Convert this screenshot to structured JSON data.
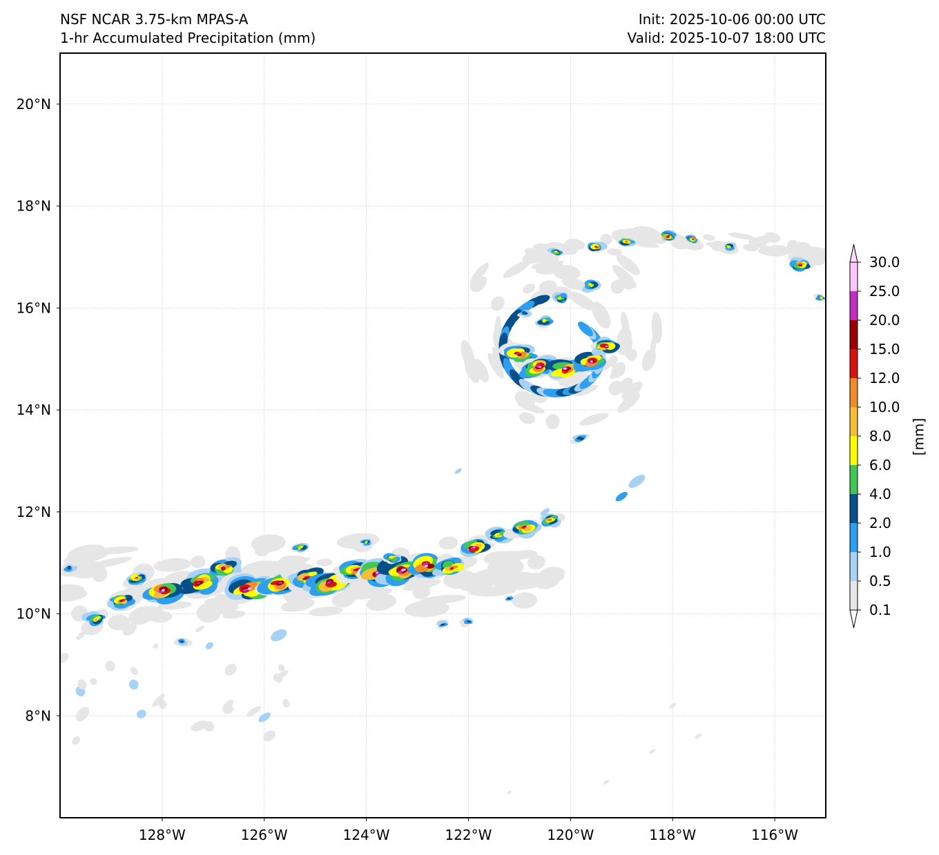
{
  "title": {
    "left_line1": "NSF NCAR 3.75-km MPAS-A",
    "left_line2": "1-hr Accumulated Precipitation (mm)",
    "right_line1": "Init: 2025-10-06 00:00 UTC",
    "right_line2": "Valid: 2025-10-07 18:00 UTC"
  },
  "map": {
    "lon_range": [
      -130,
      -115
    ],
    "lat_range": [
      6,
      21
    ],
    "lon_ticks": [
      {
        "value": -128,
        "label": "128°W"
      },
      {
        "value": -126,
        "label": "126°W"
      },
      {
        "value": -124,
        "label": "124°W"
      },
      {
        "value": -122,
        "label": "122°W"
      },
      {
        "value": -120,
        "label": "120°W"
      },
      {
        "value": -118,
        "label": "118°W"
      },
      {
        "value": -116,
        "label": "116°W"
      }
    ],
    "lat_ticks": [
      {
        "value": 20,
        "label": "20°N"
      },
      {
        "value": 18,
        "label": "18°N"
      },
      {
        "value": 16,
        "label": "16°N"
      },
      {
        "value": 14,
        "label": "14°N"
      },
      {
        "value": 12,
        "label": "12°N"
      },
      {
        "value": 10,
        "label": "10°N"
      },
      {
        "value": 8,
        "label": "8°N"
      }
    ],
    "features": {
      "cyclone_center": {
        "lon": -120.2,
        "lat": 15.5,
        "label": "tropical cyclone"
      },
      "rainband_axis": {
        "lon_start": -130,
        "lon_end": -120.2,
        "lat": 10.6,
        "label": "ITCZ rain band"
      },
      "northern_arc": {
        "lon_start": -120.8,
        "lon_end": -115,
        "lat": 17.2,
        "label": "northern rain arc"
      }
    }
  },
  "colorbar": {
    "unit_label": "[mm]",
    "levels": [
      0.1,
      0.5,
      1.0,
      2.0,
      4.0,
      6.0,
      8.0,
      10.0,
      12.0,
      15.0,
      20.0,
      25.0,
      30.0
    ],
    "level_labels": [
      "0.1",
      "0.5",
      "1.0",
      "2.0",
      "4.0",
      "6.0",
      "8.0",
      "10.0",
      "12.0",
      "15.0",
      "20.0",
      "25.0",
      "30.0"
    ],
    "colors": [
      "#e6e6e6",
      "#a8d1f6",
      "#2d9ff0",
      "#06508a",
      "#43c655",
      "#ffff00",
      "#f5be36",
      "#f08c2b",
      "#d6140f",
      "#980000",
      "#c02fc0",
      "#ffc8ff"
    ],
    "under_color": "#ffffff",
    "over_color": "#ffd8ff"
  }
}
